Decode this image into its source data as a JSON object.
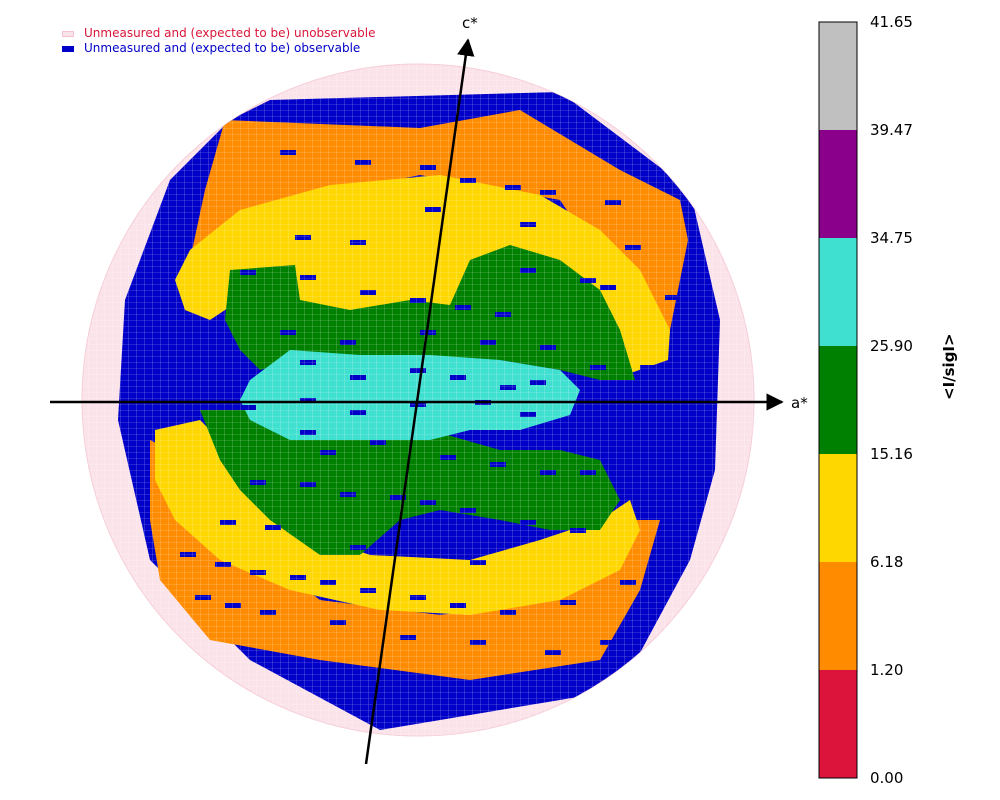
{
  "chart_data": {
    "type": "heatmap",
    "title": "",
    "axes": {
      "horizontal_label": "a*",
      "vertical_label": "c*"
    },
    "legend": [
      {
        "label": "Unmeasured and (expected to be) unobservable",
        "color": "#fbe3ea",
        "text_color": "#d9163a"
      },
      {
        "label": "Unmeasured and (expected to be) observable",
        "color": "#0000c8",
        "text_color": "#0000c8"
      }
    ],
    "colorbar": {
      "label": "<I/sigI>",
      "ticks": [
        "0.00",
        "1.20",
        "6.18",
        "15.16",
        "25.90",
        "34.75",
        "39.47",
        "41.65"
      ],
      "bins": [
        {
          "min": 0.0,
          "max": 1.2,
          "color": "#dc143c"
        },
        {
          "min": 1.2,
          "max": 6.18,
          "color": "#ff8c00"
        },
        {
          "min": 6.18,
          "max": 15.16,
          "color": "#ffd700"
        },
        {
          "min": 15.16,
          "max": 25.9,
          "color": "#008000"
        },
        {
          "min": 25.9,
          "max": 34.75,
          "color": "#40e0d0"
        },
        {
          "min": 34.75,
          "max": 39.47,
          "color": "#8b008b"
        },
        {
          "min": 39.47,
          "max": 41.65,
          "color": "#c0c0c0"
        }
      ]
    },
    "band_colors": {
      "unobservable": "#fbe3ea",
      "observable_unmeasured": "#0000c8",
      "orange": "#ff8c00",
      "yellow": "#ffd700",
      "green": "#008000",
      "turquoise": "#40e0d0"
    }
  }
}
